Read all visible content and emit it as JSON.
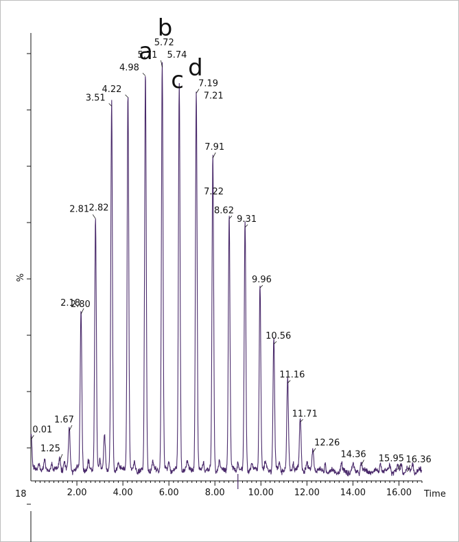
{
  "chart_data": {
    "type": "line",
    "title": "",
    "xlabel": "Time",
    "ylabel": "%",
    "y_origin_label": "18",
    "xlim": [
      0.0,
      17.0
    ],
    "x_ticks": [
      "2.00",
      "4.00",
      "6.00",
      "8.00",
      "10.00",
      "12.00",
      "14.00",
      "16.00"
    ],
    "line_color": "#4a2a6b",
    "grid": false,
    "series": [
      {
        "peaks": [
          {
            "x": 0.01,
            "height": 0.08,
            "label": "0.01"
          },
          {
            "x": 1.25,
            "height": 0.03,
            "label": "1.25"
          },
          {
            "x": 1.67,
            "height": 0.1,
            "label": "1.67"
          },
          {
            "x": 2.18,
            "height": 0.37,
            "label": "2.18"
          },
          {
            "x": 2.81,
            "height": 0.59,
            "label": "2.81"
          },
          {
            "x": 3.2,
            "height": 0.09,
            "label": ""
          },
          {
            "x": 3.51,
            "height": 0.85,
            "label": "3.51"
          },
          {
            "x": 4.22,
            "height": 0.87,
            "label": "4.22"
          },
          {
            "x": 4.98,
            "height": 0.92,
            "label": "4.98"
          },
          {
            "x": 5.71,
            "height": 0.94,
            "label": "5.71"
          },
          {
            "x": 6.45,
            "height": 0.89,
            "label": ""
          },
          {
            "x": 7.19,
            "height": 0.88,
            "label": "7.19"
          },
          {
            "x": 7.91,
            "height": 0.73,
            "label": "7.91"
          },
          {
            "x": 8.62,
            "height": 0.59,
            "label": "8.62"
          },
          {
            "x": 9.31,
            "height": 0.57,
            "label": "9.31"
          },
          {
            "x": 9.96,
            "height": 0.43,
            "label": "9.96"
          },
          {
            "x": 10.56,
            "height": 0.3,
            "label": "10.56"
          },
          {
            "x": 11.16,
            "height": 0.21,
            "label": "11.16"
          },
          {
            "x": 11.71,
            "height": 0.12,
            "label": "11.71"
          },
          {
            "x": 12.26,
            "height": 0.05,
            "label": "12.26"
          },
          {
            "x": 14.36,
            "height": 0.02,
            "label": "14.36"
          },
          {
            "x": 15.95,
            "height": 0.01,
            "label": "15.95"
          },
          {
            "x": 16.36,
            "height": 0.005,
            "label": "16.36"
          }
        ]
      }
    ],
    "extra_labels": [
      {
        "text": "2.80",
        "x": 2.8,
        "height": 0.37
      },
      {
        "text": "2.82",
        "x": 2.82,
        "height": 0.59
      },
      {
        "text": "5.72",
        "x": 5.72,
        "height": 0.94
      },
      {
        "text": "5.74",
        "x": 5.74,
        "height": 0.94
      },
      {
        "text": "7.21",
        "x": 7.21,
        "height": 0.88
      },
      {
        "text": "7.22",
        "x": 7.22,
        "height": 0.73
      }
    ],
    "peak_letters": [
      {
        "text": "a",
        "x": 4.98
      },
      {
        "text": "b",
        "x": 5.72
      },
      {
        "text": "c",
        "x": 6.45
      },
      {
        "text": "d",
        "x": 7.19
      }
    ]
  }
}
